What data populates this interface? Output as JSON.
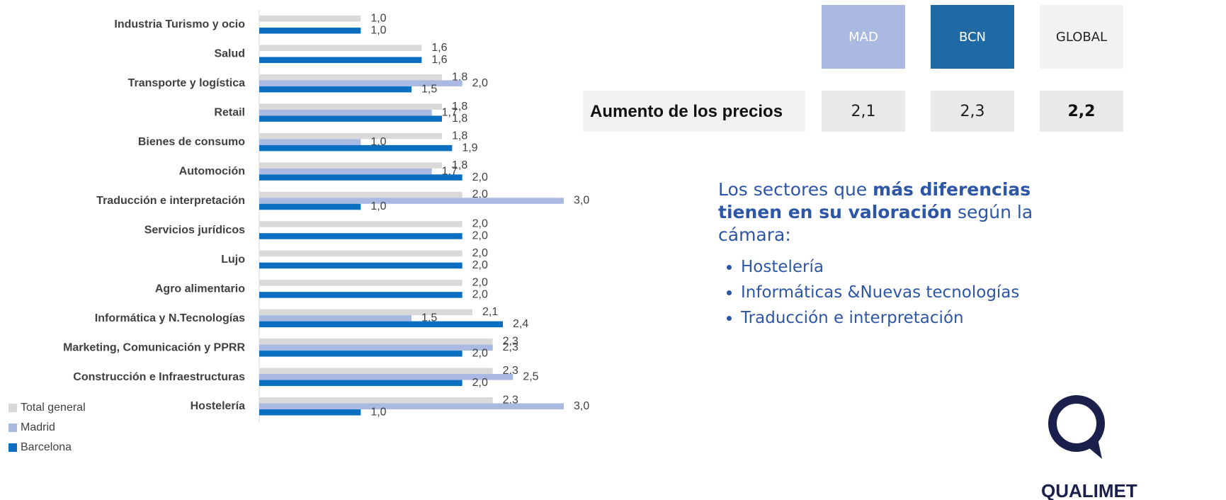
{
  "chart_data": {
    "type": "bar",
    "orientation": "horizontal",
    "categories": [
      "Industria Turismo y ocio",
      "Salud",
      "Transporte y logística",
      "Retail",
      "Bienes de consumo",
      "Automoción",
      "Traducción e interpretación",
      "Servicios jurídicos",
      "Lujo",
      "Agro alimentario",
      "Informática y N.Tecnologías",
      "Marketing, Comunicación  y PPRR",
      "Construcción e Infraestructuras",
      "Hostelería"
    ],
    "series": [
      {
        "name": "Total general",
        "color": "#d9d9d9",
        "values": [
          1.0,
          1.6,
          1.8,
          1.8,
          1.8,
          1.8,
          2.0,
          2.0,
          2.0,
          2.0,
          2.1,
          2.3,
          2.3,
          2.3
        ],
        "value_labels": [
          "1,0",
          "1,6",
          "1,8",
          "1,8",
          "1,8",
          "1,8",
          "2,0",
          "2,0",
          "2,0",
          "2,0",
          "2,1",
          "2,3",
          "2,3",
          "2,3"
        ]
      },
      {
        "name": "Madrid",
        "color": "#a9b9e2",
        "values": [
          null,
          null,
          2.0,
          1.7,
          1.0,
          1.7,
          3.0,
          null,
          null,
          null,
          1.5,
          2.3,
          2.5,
          3.0
        ],
        "value_labels": [
          null,
          null,
          "2,0",
          "1,7",
          "1,0",
          "1,7",
          "3,0",
          null,
          null,
          null,
          "1,5",
          "2,3",
          "2,5",
          "3,0"
        ]
      },
      {
        "name": "Barcelona",
        "color": "#0b6fc1",
        "values": [
          1.0,
          1.6,
          1.5,
          1.8,
          1.9,
          2.0,
          1.0,
          2.0,
          2.0,
          2.0,
          2.4,
          2.0,
          2.0,
          1.0
        ],
        "value_labels": [
          "1,0",
          "1,6",
          "1,5",
          "1,8",
          "1,9",
          "2,0",
          "1,0",
          "2,0",
          "2,0",
          "2,0",
          "2,4",
          "2,0",
          "2,0",
          "1,0"
        ]
      }
    ],
    "xlim": [
      0,
      3.0
    ],
    "legend": "bottom-left"
  },
  "table": {
    "headers": [
      "MAD",
      "BCN",
      "GLOBAL"
    ],
    "rows": [
      [
        "Aumento de los precios",
        "2,1",
        "2,3",
        "2,2"
      ]
    ]
  },
  "notes": {
    "heading": [
      "Los sectores que ",
      "más diferencias tienen en su valoración",
      " según la cámara:"
    ],
    "bullets": [
      "Hostelería",
      "Informáticas &Nuevas tecnologías",
      "Traducción e interpretación"
    ]
  },
  "logo": {
    "text": "QUALIMET"
  }
}
